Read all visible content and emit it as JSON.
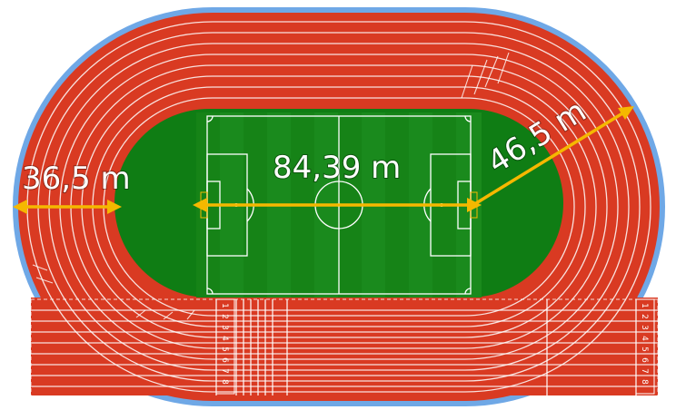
{
  "colors": {
    "track": "#d93a22",
    "track_edge": "#6fa8e6",
    "field": "#0f7d14",
    "field_light": "#1e8f22",
    "lines": "#ffffff",
    "arrow": "#f5b800"
  },
  "dimensions": {
    "left_width": "36,5 m",
    "center_length": "84,39 m",
    "radius": "46,5 m"
  },
  "lane_numbers": {
    "left_group": [
      "1",
      "2",
      "3",
      "4",
      "5",
      "6",
      "7",
      "8"
    ],
    "right_group": [
      "1",
      "2",
      "3",
      "4",
      "5",
      "6",
      "7",
      "8"
    ]
  }
}
